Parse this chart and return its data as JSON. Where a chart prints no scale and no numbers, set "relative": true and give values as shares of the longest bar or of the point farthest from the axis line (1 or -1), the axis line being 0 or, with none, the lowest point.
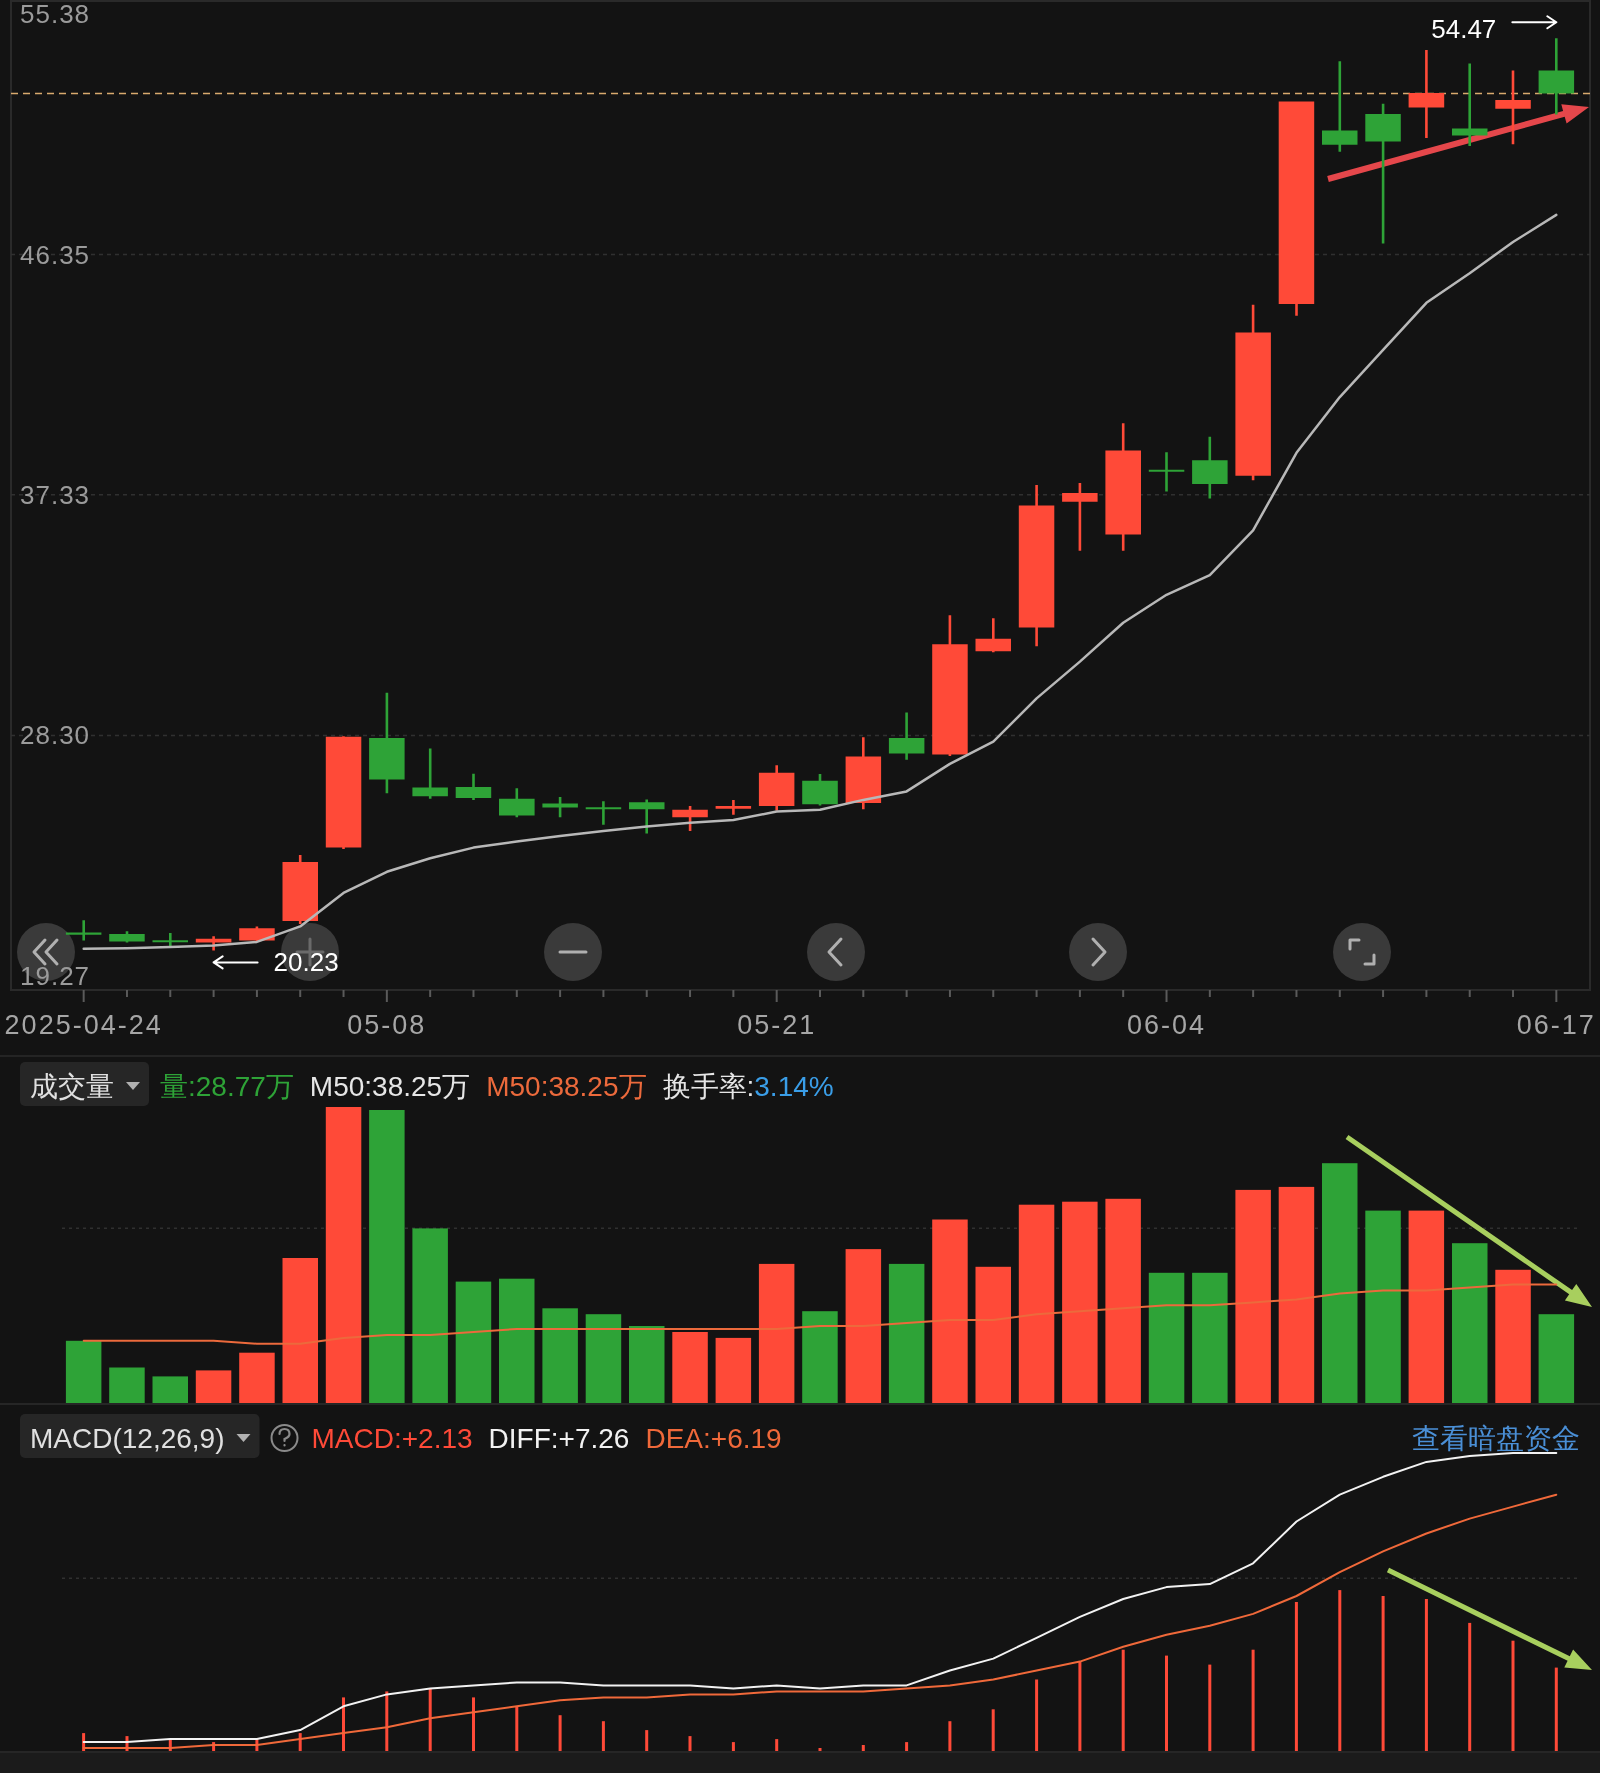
{
  "chart_data": [
    {
      "type": "candlestick",
      "categories": [
        "2025-04-24",
        null,
        null,
        null,
        null,
        null,
        null,
        "05-08",
        null,
        null,
        null,
        null,
        null,
        null,
        null,
        null,
        "05-21",
        null,
        null,
        null,
        null,
        null,
        null,
        null,
        null,
        "06-04",
        null,
        null,
        null,
        null,
        null,
        null,
        null,
        null,
        "06-17"
      ],
      "ohlc": [
        [
          20.9,
          21.36,
          20.6,
          20.82
        ],
        [
          20.85,
          20.95,
          20.53,
          20.57
        ],
        [
          20.59,
          20.88,
          20.37,
          20.56
        ],
        [
          20.53,
          20.76,
          20.23,
          20.67
        ],
        [
          20.6,
          21.13,
          20.55,
          21.06
        ],
        [
          21.34,
          23.81,
          21.22,
          23.55
        ],
        [
          24.09,
          28.27,
          24.04,
          28.25
        ],
        [
          28.2,
          29.9,
          26.13,
          26.65
        ],
        [
          26.34,
          27.81,
          25.92,
          26.02
        ],
        [
          26.37,
          26.86,
          25.88,
          25.95
        ],
        [
          25.92,
          26.32,
          25.23,
          25.3
        ],
        [
          25.74,
          25.99,
          25.23,
          25.6
        ],
        [
          25.6,
          25.83,
          24.95,
          25.53
        ],
        [
          25.79,
          25.9,
          24.62,
          25.53
        ],
        [
          25.23,
          25.65,
          24.71,
          25.51
        ],
        [
          25.55,
          25.88,
          25.32,
          25.65
        ],
        [
          25.65,
          27.18,
          25.48,
          26.9
        ],
        [
          26.6,
          26.85,
          25.67,
          25.72
        ],
        [
          25.76,
          28.23,
          25.53,
          27.51
        ],
        [
          28.2,
          29.16,
          27.39,
          27.62
        ],
        [
          27.58,
          32.81,
          27.53,
          31.72
        ],
        [
          31.46,
          32.7,
          31.42,
          31.93
        ],
        [
          32.35,
          37.7,
          31.65,
          36.93
        ],
        [
          37.07,
          37.77,
          35.23,
          37.4
        ],
        [
          35.84,
          40.02,
          35.23,
          39.0
        ],
        [
          38.26,
          38.93,
          37.46,
          38.21
        ],
        [
          38.63,
          39.51,
          37.19,
          37.74
        ],
        [
          38.05,
          44.47,
          37.88,
          43.42
        ],
        [
          44.49,
          52.1,
          44.05,
          52.1
        ],
        [
          51.01,
          53.61,
          50.21,
          50.47
        ],
        [
          51.63,
          52.01,
          46.77,
          50.59
        ],
        [
          51.87,
          54.03,
          50.73,
          52.42
        ],
        [
          51.08,
          53.52,
          50.42,
          50.82
        ],
        [
          51.82,
          53.26,
          50.49,
          52.15
        ],
        [
          53.26,
          54.47,
          51.61,
          52.4
        ]
      ],
      "colors": [
        "#2ea337",
        "#2ea337",
        "#2ea337",
        "#ff4a38",
        "#ff4a38",
        "#ff4a38",
        "#ff4a38",
        "#2ea337",
        "#2ea337",
        "#2ea337",
        "#2ea337",
        "#2ea337",
        "#2ea337",
        "#2ea337",
        "#ff4a38",
        "#ff4a38",
        "#ff4a38",
        "#2ea337",
        "#ff4a38",
        "#2ea337",
        "#ff4a38",
        "#ff4a38",
        "#ff4a38",
        "#ff4a38",
        "#ff4a38",
        "#2ea337",
        "#2ea337",
        "#ff4a38",
        "#ff4a38",
        "#2ea337",
        "#2ea337",
        "#ff4a38",
        "#2ea337",
        "#ff4a38",
        "#2ea337"
      ],
      "series": [
        {
          "type": "line",
          "color": "#b8b8b8",
          "values": [
            20.29,
            20.31,
            20.36,
            20.41,
            20.55,
            21.13,
            22.39,
            23.18,
            23.69,
            24.09,
            24.32,
            24.53,
            24.71,
            24.88,
            25.02,
            25.13,
            25.44,
            25.51,
            25.88,
            26.2,
            27.23,
            28.07,
            29.69,
            31.07,
            32.53,
            33.58,
            34.32,
            36.0,
            38.91,
            41.0,
            42.77,
            44.54,
            45.65,
            46.82,
            47.84
          ]
        }
      ],
      "ylim": [
        19.27,
        55.38
      ],
      "yticks": [
        19.27,
        {
          "value": 28.3,
          "label": "28.30"
        },
        37.33,
        46.35,
        55.38
      ],
      "grid": "y",
      "ref_lines": [
        {
          "axis": "y",
          "value": 52.4,
          "color": "#d9aa6e",
          "line_style": "dashed"
        }
      ],
      "annotations": [
        {
          "text": "54.47",
          "x": "06-17",
          "y": 54.47
        },
        "20.23"
      ]
    },
    {
      "type": "bar",
      "title": "成交量",
      "relative": true,
      "categories": [
        null,
        null,
        null,
        null,
        null,
        null,
        null,
        null,
        null,
        null,
        null,
        null,
        null,
        null,
        null,
        null,
        null,
        null,
        null,
        null,
        null,
        null,
        null,
        null,
        null,
        null,
        null,
        null,
        null,
        null,
        null,
        null,
        null,
        null,
        null
      ],
      "legend": "top left",
      "series": [
        {
          "name": "量:28.77万",
          "colors": [
            "#2ea337",
            "#2ea337",
            "#2ea337",
            "#ff4a38",
            "#ff4a38",
            "#ff4a38",
            "#ff4a38",
            "#2ea337",
            "#2ea337",
            "#2ea337",
            "#2ea337",
            "#2ea337",
            "#2ea337",
            "#2ea337",
            "#ff4a38",
            "#ff4a38",
            "#ff4a38",
            "#2ea337",
            "#ff4a38",
            "#2ea337",
            "#ff4a38",
            "#ff4a38",
            "#ff4a38",
            "#ff4a38",
            "#ff4a38",
            "#2ea337",
            "#2ea337",
            "#ff4a38",
            "#ff4a38",
            "#2ea337",
            "#2ea337",
            "#ff4a38",
            "#2ea337",
            "#ff4a38",
            "#2ea337"
          ],
          "values": [
            0.21,
            0.12,
            0.09,
            0.11,
            0.17,
            0.49,
            1.0,
            0.99,
            0.59,
            0.41,
            0.42,
            0.32,
            0.3,
            0.26,
            0.24,
            0.22,
            0.47,
            0.31,
            0.52,
            0.47,
            0.62,
            0.46,
            0.67,
            0.68,
            0.69,
            0.44,
            0.44,
            0.72,
            0.73,
            0.81,
            0.65,
            0.65,
            0.54,
            0.45,
            0.3
          ]
        },
        {
          "name": "M50:38.25万",
          "type": "line",
          "color": "#ec6a3c",
          "values": [
            0.21,
            0.21,
            0.21,
            0.21,
            0.2,
            0.2,
            0.22,
            0.23,
            0.23,
            0.24,
            0.25,
            0.25,
            0.25,
            0.25,
            0.25,
            0.25,
            0.25,
            0.26,
            0.26,
            0.27,
            0.28,
            0.28,
            0.3,
            0.31,
            0.32,
            0.33,
            0.33,
            0.34,
            0.35,
            0.37,
            0.38,
            0.38,
            0.39,
            0.4,
            0.4
          ]
        }
      ],
      "ref_lines": [
        {
          "axis": "y",
          "value": 0.59,
          "color": "#303030",
          "line_style": "dotted"
        }
      ],
      "annotations": [
        "M50:38.25万",
        "换手率:3.14%"
      ]
    },
    {
      "type": "bar",
      "title": "MACD(12,26,9)",
      "relative": true,
      "categories": [
        null,
        null,
        null,
        null,
        null,
        null,
        null,
        null,
        null,
        null,
        null,
        null,
        null,
        null,
        null,
        null,
        null,
        null,
        null,
        null,
        null,
        null,
        null,
        null,
        null,
        null,
        null,
        null,
        null,
        null,
        null,
        null,
        null,
        null,
        null
      ],
      "legend": "top left",
      "series": [
        {
          "name": "MACD:+2.13",
          "color": "#ff4a38",
          "values": [
            0.06,
            0.05,
            0.04,
            0.03,
            0.04,
            0.06,
            0.18,
            0.2,
            0.21,
            0.18,
            0.15,
            0.12,
            0.1,
            0.07,
            0.05,
            0.03,
            0.04,
            0.01,
            0.02,
            0.03,
            0.1,
            0.14,
            0.24,
            0.3,
            0.34,
            0.32,
            0.29,
            0.34,
            0.5,
            0.54,
            0.52,
            0.51,
            0.43,
            0.37,
            0.28
          ]
        },
        {
          "name": "DIFF:+7.26",
          "type": "line",
          "color": "#f2f2f2",
          "values": [
            0.03,
            0.03,
            0.04,
            0.04,
            0.04,
            0.07,
            0.15,
            0.19,
            0.21,
            0.22,
            0.23,
            0.23,
            0.22,
            0.22,
            0.22,
            0.21,
            0.22,
            0.21,
            0.22,
            0.22,
            0.27,
            0.31,
            0.38,
            0.45,
            0.51,
            0.55,
            0.56,
            0.63,
            0.77,
            0.86,
            0.92,
            0.97,
            0.99,
            1.0,
            1.0
          ]
        },
        {
          "name": "DEA:+6.19",
          "type": "line",
          "color": "#f0693a",
          "values": [
            0.01,
            0.01,
            0.01,
            0.02,
            0.02,
            0.04,
            0.06,
            0.08,
            0.11,
            0.13,
            0.15,
            0.17,
            0.18,
            0.18,
            0.19,
            0.19,
            0.2,
            0.2,
            0.2,
            0.21,
            0.22,
            0.24,
            0.27,
            0.3,
            0.35,
            0.39,
            0.42,
            0.46,
            0.52,
            0.6,
            0.67,
            0.73,
            0.78,
            0.82,
            0.86
          ]
        }
      ],
      "ref_lines": [
        {
          "axis": "y",
          "value": 0.58,
          "color": "#303030",
          "line_style": "dotted"
        }
      ],
      "annotations": [
        "查看暗盘资金"
      ]
    }
  ]
}
